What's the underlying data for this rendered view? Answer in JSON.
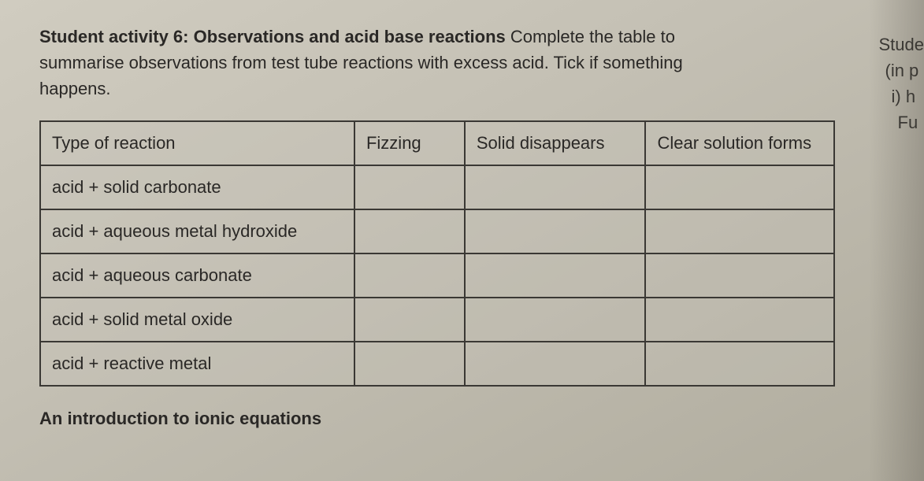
{
  "instruction": {
    "title_bold": "Student activity 6: Observations and acid base reactions",
    "body_part1": " Complete the table to summarise observations from test tube reactions with excess acid. Tick if something happens."
  },
  "table": {
    "headers": {
      "col1": "Type of reaction",
      "col2": "Fizzing",
      "col3": "Solid disappears",
      "col4": "Clear solution forms"
    },
    "rows": [
      {
        "label": "acid + solid carbonate",
        "fizzing": "",
        "solid": "",
        "clear": ""
      },
      {
        "label": "acid + aqueous metal hydroxide",
        "fizzing": "",
        "solid": "",
        "clear": ""
      },
      {
        "label": "acid + aqueous carbonate",
        "fizzing": "",
        "solid": "",
        "clear": ""
      },
      {
        "label": "acid + solid metal oxide",
        "fizzing": "",
        "solid": "",
        "clear": ""
      },
      {
        "label": "acid + reactive metal",
        "fizzing": "",
        "solid": "",
        "clear": ""
      }
    ]
  },
  "margin": {
    "line1": "Stude",
    "line2": "(in p",
    "line3": "i) h",
    "line4": "Fu"
  },
  "footer": "An introduction to ionic equations",
  "colors": {
    "text": "#2a2826",
    "border": "#3a3834",
    "bg_start": "#d0ccc0",
    "bg_end": "#b0ac9e"
  },
  "typography": {
    "body_fontsize": 22,
    "title_weight": 700
  }
}
